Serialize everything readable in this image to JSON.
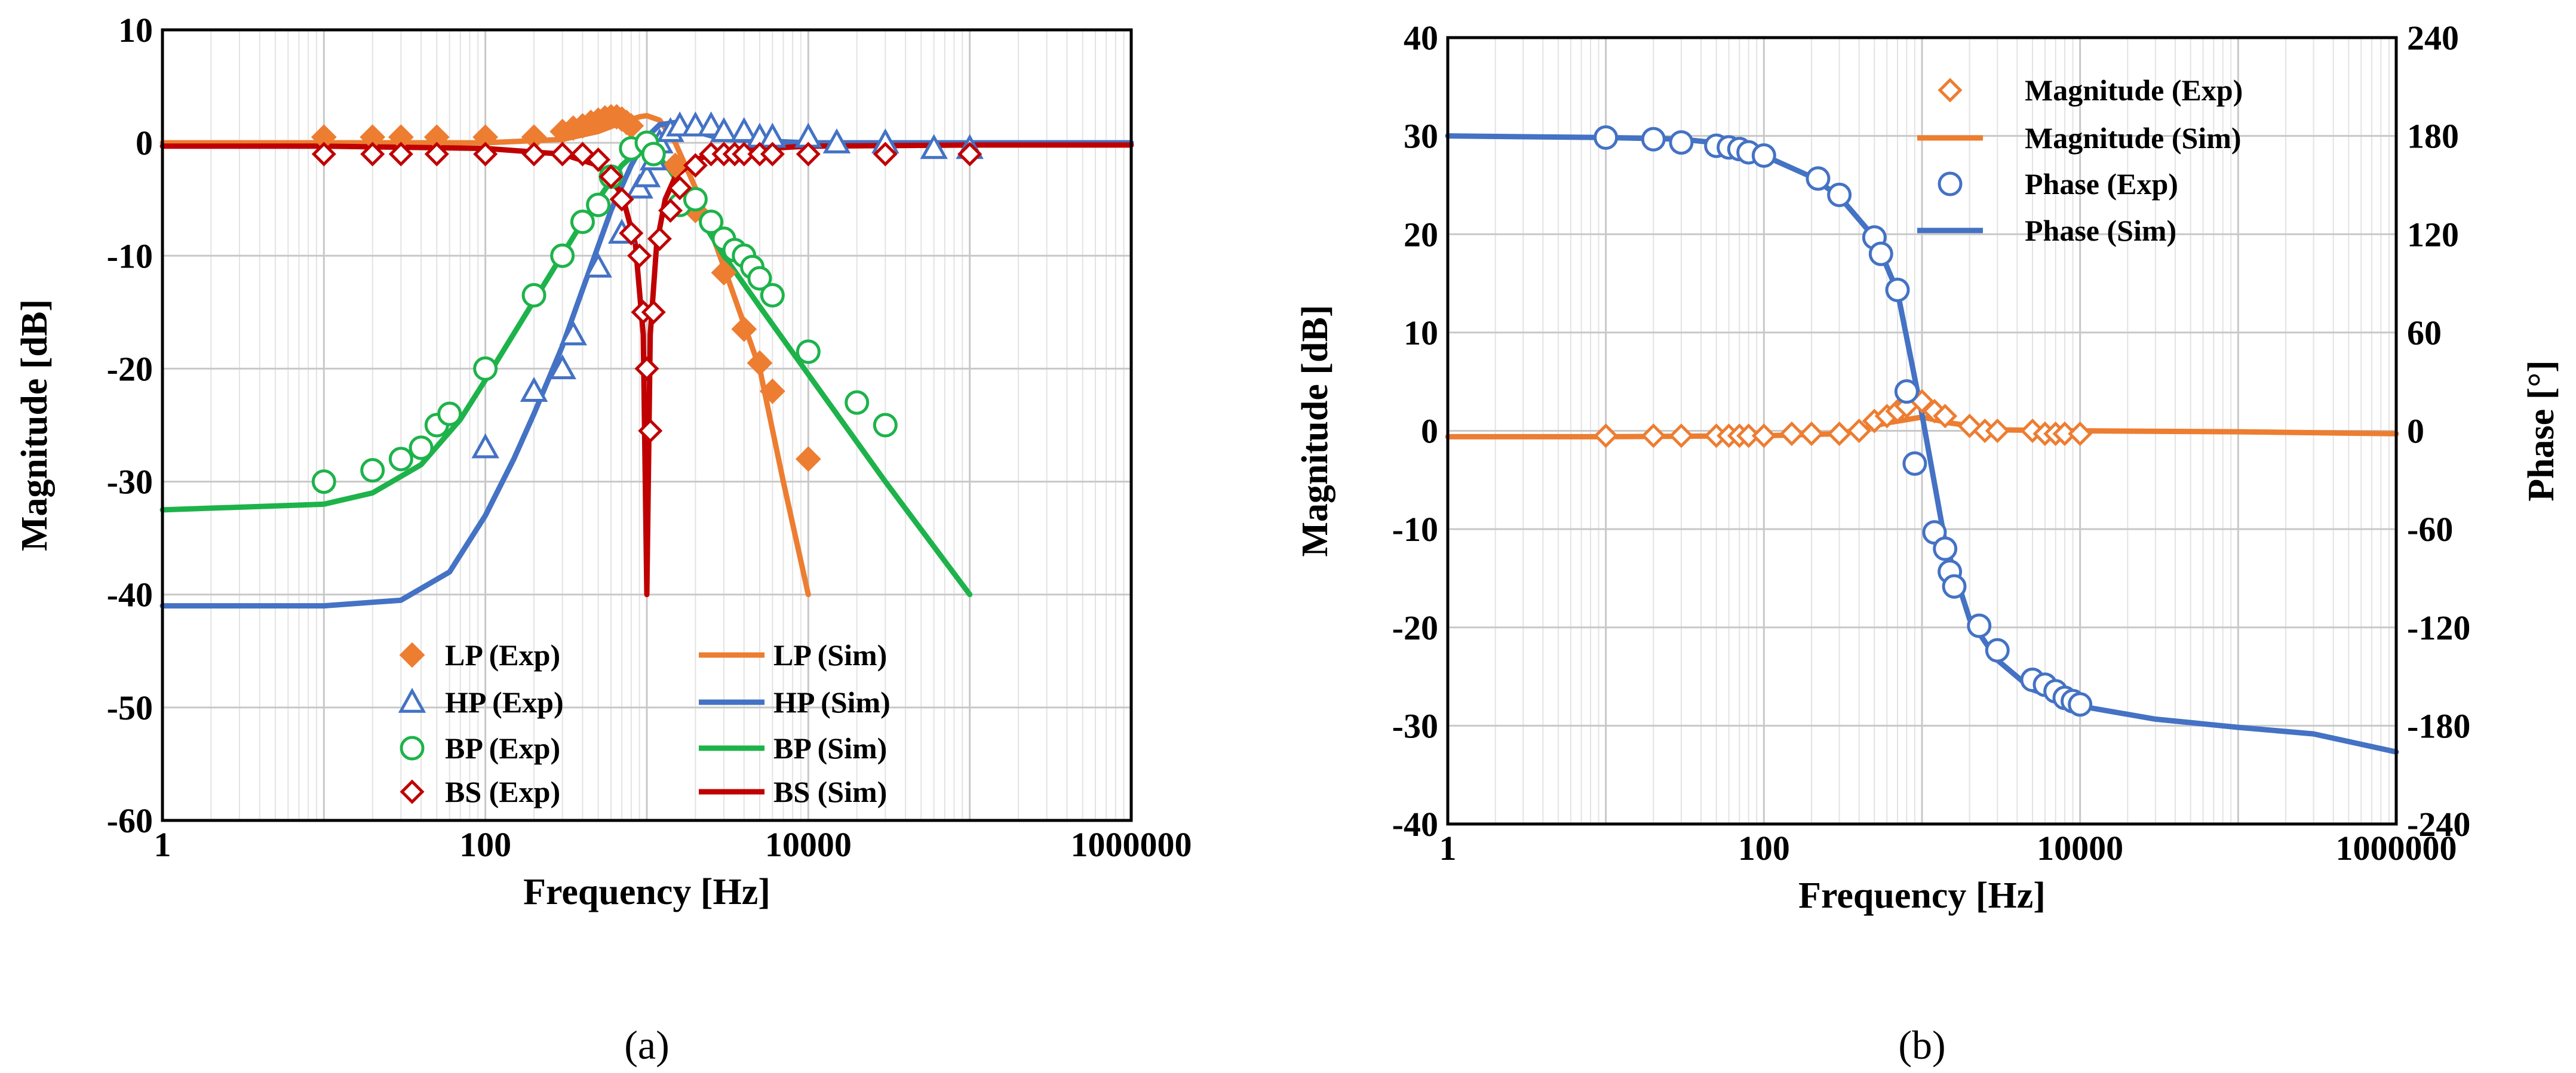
{
  "colors": {
    "lp": "#ED7D31",
    "hp": "#4472C4",
    "bp": "#1DB34A",
    "bs": "#C00000",
    "grid": "#D9D9D9"
  },
  "chart_data": [
    {
      "id": "a",
      "type": "scatter",
      "panel_label": "(a)",
      "xlabel": "Frequency [Hz]",
      "ylabel": "Magnitude [dB]",
      "xscale": "log",
      "xlim": [
        1,
        1000000
      ],
      "ylim": [
        -60,
        10
      ],
      "xticks": [
        1,
        100,
        10000,
        1000000
      ],
      "xtick_labels": [
        "1",
        "100",
        "10000",
        "1000000"
      ],
      "yticks": [
        -60,
        -50,
        -40,
        -30,
        -20,
        -10,
        0,
        10
      ],
      "ytick_labels": [
        "-60",
        "-50",
        "-40",
        "-30",
        "-20",
        "-10",
        "0",
        "10"
      ],
      "legend_position": "bottom-center",
      "series": [
        {
          "name": "LP (Exp)",
          "kind": "marker",
          "marker": "diamond-filled",
          "color": "#ED7D31",
          "x": [
            10,
            20,
            30,
            50,
            100,
            200,
            300,
            350,
            400,
            450,
            500,
            550,
            600,
            650,
            700,
            750,
            800,
            1500,
            2000,
            3000,
            4000,
            5000,
            6000,
            10000
          ],
          "y": [
            0.5,
            0.5,
            0.5,
            0.5,
            0.5,
            0.5,
            1,
            1.3,
            1.5,
            1.8,
            2,
            2.2,
            2.3,
            2.3,
            2.1,
            1.8,
            1.5,
            -2,
            -6,
            -11.5,
            -16.5,
            -19.5,
            -22,
            -28
          ]
        },
        {
          "name": "HP (Exp)",
          "kind": "marker",
          "marker": "triangle-open",
          "color": "#4472C4",
          "x": [
            100,
            200,
            300,
            350,
            500,
            700,
            900,
            1000,
            1100,
            1200,
            1400,
            1600,
            2000,
            2500,
            3000,
            4000,
            5000,
            6000,
            10000,
            15000,
            30000,
            60000,
            100000
          ],
          "y": [
            -27,
            -22,
            -20,
            -17,
            -11,
            -8,
            -4,
            -3,
            -1.5,
            0,
            1,
            1.5,
            1.5,
            1.5,
            1,
            1,
            0.5,
            0.5,
            0.5,
            0,
            0,
            -0.5,
            -0.5
          ]
        },
        {
          "name": "BP (Exp)",
          "kind": "marker",
          "marker": "circle-open",
          "color": "#1DB34A",
          "x": [
            10,
            20,
            30,
            40,
            50,
            60,
            100,
            200,
            300,
            400,
            500,
            600,
            800,
            1000,
            1100,
            1600,
            2000,
            2500,
            3000,
            3500,
            4000,
            4500,
            5000,
            6000,
            10000,
            20000,
            30000
          ],
          "y": [
            -30,
            -29,
            -28,
            -27,
            -25,
            -24,
            -20,
            -13.5,
            -10,
            -7,
            -5.5,
            -3,
            -0.5,
            0,
            -1,
            -5.5,
            -5,
            -7,
            -8.5,
            -9.5,
            -10,
            -11,
            -12,
            -13.5,
            -18.5,
            -23,
            -25
          ]
        },
        {
          "name": "BS (Exp)",
          "kind": "marker",
          "marker": "diamond-open",
          "color": "#C00000",
          "x": [
            10,
            20,
            30,
            50,
            100,
            200,
            300,
            400,
            500,
            600,
            700,
            800,
            900,
            950,
            1000,
            1050,
            1100,
            1200,
            1400,
            1600,
            2000,
            2500,
            3000,
            3500,
            4000,
            5000,
            6000,
            10000,
            30000,
            100000
          ],
          "y": [
            -1,
            -1,
            -1,
            -1,
            -1,
            -1,
            -1,
            -1,
            -1.5,
            -3,
            -5,
            -8,
            -10,
            -15,
            -20,
            -25.5,
            -15,
            -8.5,
            -6,
            -4,
            -2,
            -1,
            -1,
            -1,
            -1,
            -1,
            -1,
            -1,
            -1,
            -1
          ]
        },
        {
          "name": "LP (Sim)",
          "kind": "line",
          "color": "#ED7D31",
          "x": [
            1,
            10,
            100,
            300,
            500,
            700,
            900,
            1000,
            1200,
            1500,
            2000,
            3000,
            5000,
            7000,
            10000
          ],
          "y": [
            0,
            0,
            0,
            0.3,
            1,
            1.8,
            2.3,
            2.4,
            2,
            0,
            -4,
            -11,
            -20,
            -30,
            -40
          ]
        },
        {
          "name": "HP (Sim)",
          "kind": "line",
          "color": "#4472C4",
          "x": [
            1,
            10,
            30,
            60,
            100,
            150,
            200,
            300,
            400,
            600,
            800,
            1000,
            1200,
            1500,
            2000,
            3000,
            10000,
            100000,
            1000000
          ],
          "y": [
            -41,
            -41,
            -40.5,
            -38,
            -33,
            -28,
            -24,
            -18,
            -13,
            -6,
            -2,
            0.5,
            1.6,
            1.8,
            1,
            0.3,
            0,
            0,
            0
          ]
        },
        {
          "name": "BP (Sim)",
          "kind": "line",
          "color": "#1DB34A",
          "x": [
            1,
            10,
            20,
            40,
            70,
            100,
            200,
            400,
            700,
            1000,
            1400,
            2000,
            3000,
            5000,
            10000,
            30000,
            100000
          ],
          "y": [
            -32.5,
            -32,
            -31,
            -28.5,
            -24.5,
            -21,
            -14,
            -7,
            -2,
            0,
            -2.5,
            -6,
            -10,
            -14.5,
            -20.5,
            -30,
            -40
          ]
        },
        {
          "name": "BS (Sim)",
          "kind": "line",
          "color": "#C00000",
          "x": [
            1,
            10,
            100,
            300,
            500,
            700,
            850,
            950,
            1000,
            1050,
            1150,
            1300,
            1500,
            2000,
            3000,
            10000,
            100000,
            1000000
          ],
          "y": [
            -0.3,
            -0.3,
            -0.5,
            -1,
            -2,
            -4.5,
            -9,
            -17,
            -40,
            -17,
            -9,
            -5,
            -3,
            -1.5,
            -0.7,
            -0.3,
            -0.2,
            -0.2
          ]
        }
      ]
    },
    {
      "id": "b",
      "type": "scatter",
      "panel_label": "(b)",
      "xlabel": "Frequency [Hz]",
      "ylabel": "Magnitude [dB]",
      "y2label": "Phase [°]",
      "xscale": "log",
      "xlim": [
        1,
        1000000
      ],
      "ylim": [
        -40,
        40
      ],
      "y2lim": [
        -240,
        240
      ],
      "xticks": [
        1,
        100,
        10000,
        1000000
      ],
      "xtick_labels": [
        "1",
        "100",
        "10000",
        "1000000"
      ],
      "yticks": [
        -40,
        -30,
        -20,
        -10,
        0,
        10,
        20,
        30,
        40
      ],
      "ytick_labels": [
        "-40",
        "-30",
        "-20",
        "-10",
        "0",
        "10",
        "20",
        "30",
        "40"
      ],
      "y2ticks": [
        -240,
        -180,
        -120,
        -60,
        0,
        60,
        120,
        180,
        240
      ],
      "y2tick_labels": [
        "-240",
        "-180",
        "-120",
        "-60",
        "0",
        "60",
        "120",
        "180",
        "240"
      ],
      "legend_position": "top-right",
      "series": [
        {
          "name": "Magnitude (Exp)",
          "kind": "marker",
          "marker": "diamond-open",
          "color": "#ED7D31",
          "axis": "y",
          "x": [
            10,
            20,
            30,
            50,
            60,
            70,
            80,
            100,
            150,
            200,
            300,
            400,
            500,
            600,
            700,
            800,
            1000,
            1200,
            1400,
            2000,
            2500,
            3000,
            5000,
            6000,
            7000,
            8000,
            10000
          ],
          "y": [
            -0.5,
            -0.5,
            -0.5,
            -0.5,
            -0.5,
            -0.5,
            -0.5,
            -0.5,
            -0.3,
            -0.3,
            -0.3,
            0,
            1,
            1.5,
            2,
            2.5,
            3,
            2,
            1.5,
            0.5,
            0,
            0,
            0,
            -0.3,
            -0.3,
            -0.3,
            -0.3
          ]
        },
        {
          "name": "Magnitude (Sim)",
          "kind": "line",
          "color": "#ED7D31",
          "axis": "y",
          "x": [
            1,
            10,
            100,
            300,
            600,
            1000,
            1500,
            3000,
            10000,
            100000,
            1000000
          ],
          "y": [
            -0.6,
            -0.6,
            -0.5,
            -0.3,
            0.8,
            1.4,
            0.8,
            0.1,
            0,
            -0.1,
            -0.3
          ]
        },
        {
          "name": "Phase (Exp)",
          "kind": "marker",
          "marker": "circle-open",
          "color": "#4472C4",
          "axis": "y2",
          "x": [
            10,
            20,
            30,
            50,
            60,
            70,
            80,
            100,
            220,
            300,
            500,
            550,
            700,
            800,
            900,
            1200,
            1400,
            1500,
            1600,
            2300,
            3000,
            5000,
            6000,
            7000,
            8000,
            9000,
            10000
          ],
          "y": [
            179,
            178,
            176,
            174,
            173,
            172,
            170,
            168,
            154,
            144,
            118,
            108,
            86,
            24,
            -20,
            -62,
            -72,
            -86,
            -95,
            -119,
            -134,
            -152,
            -155,
            -159,
            -163,
            -165,
            -167
          ]
        },
        {
          "name": "Phase (Sim)",
          "kind": "line",
          "color": "#4472C4",
          "axis": "y2",
          "x": [
            1,
            10,
            30,
            60,
            100,
            200,
            300,
            500,
            700,
            1000,
            1400,
            2000,
            3000,
            5000,
            10000,
            30000,
            100000,
            300000,
            1000000
          ],
          "y": [
            180,
            179,
            178,
            175,
            168,
            155,
            143,
            118,
            85,
            10,
            -68,
            -115,
            -140,
            -158,
            -168,
            -176,
            -181,
            -185,
            -196
          ]
        }
      ]
    }
  ]
}
